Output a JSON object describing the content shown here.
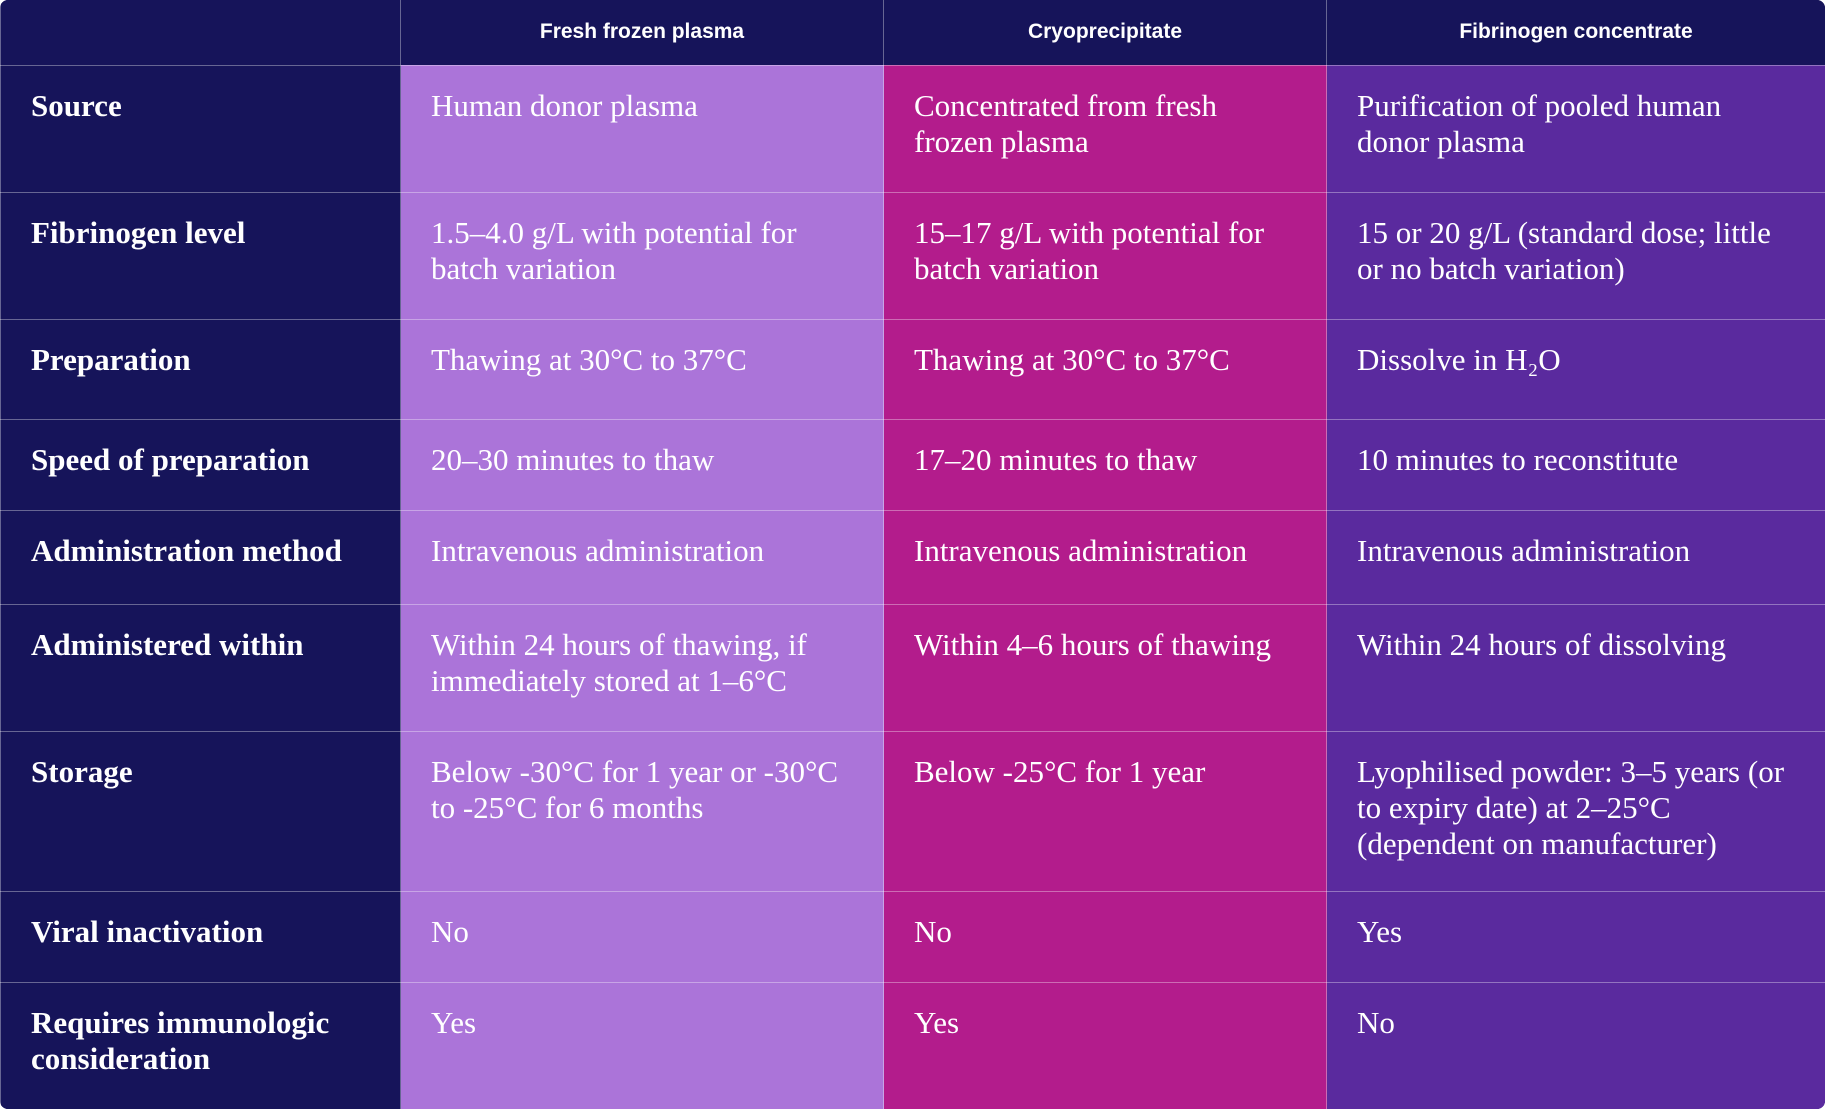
{
  "table": {
    "columns": [
      "Fresh frozen plasma",
      "Cryoprecipitate",
      "Fibrinogen concentrate"
    ],
    "rows": [
      {
        "label": "Source",
        "cells": [
          "Human donor plasma",
          "Concentrated from fresh frozen plasma",
          "Purification of pooled human donor plasma"
        ]
      },
      {
        "label": "Fibrinogen level",
        "cells": [
          "1.5–4.0 g/L with potential for batch variation",
          "15–17 g/L with potential for batch variation",
          "15 or 20 g/L (standard dose; little or no batch variation)"
        ]
      },
      {
        "label": "Preparation",
        "cells": [
          "Thawing at 30°C to 37°C",
          "Thawing at 30°C to 37°C",
          "Dissolve in H₂O"
        ]
      },
      {
        "label": "Speed of preparation",
        "cells": [
          "20–30 minutes to thaw",
          "17–20 minutes to thaw",
          "10 minutes to reconstitute"
        ]
      },
      {
        "label": "Administration method",
        "cells": [
          "Intravenous administration",
          "Intravenous administration",
          "Intravenous administration"
        ]
      },
      {
        "label": "Administered within",
        "cells": [
          "Within 24 hours of thawing, if immediately stored at 1–6°C",
          "Within 4–6 hours of thawing",
          "Within 24 hours of dissolving"
        ]
      },
      {
        "label": "Storage",
        "cells": [
          "Below -30°C for 1 year or -30°C to -25°C for 6 months",
          "Below -25°C for 1 year",
          "Lyophilised powder: 3–5 years (or to expiry date) at 2–25°C (dependent on manufacturer)"
        ]
      },
      {
        "label": "Viral inactivation",
        "cells": [
          "No",
          "No",
          "Yes"
        ]
      },
      {
        "label": "Requires immunologic consideration",
        "cells": [
          "Yes",
          "Yes",
          "No"
        ]
      }
    ]
  }
}
